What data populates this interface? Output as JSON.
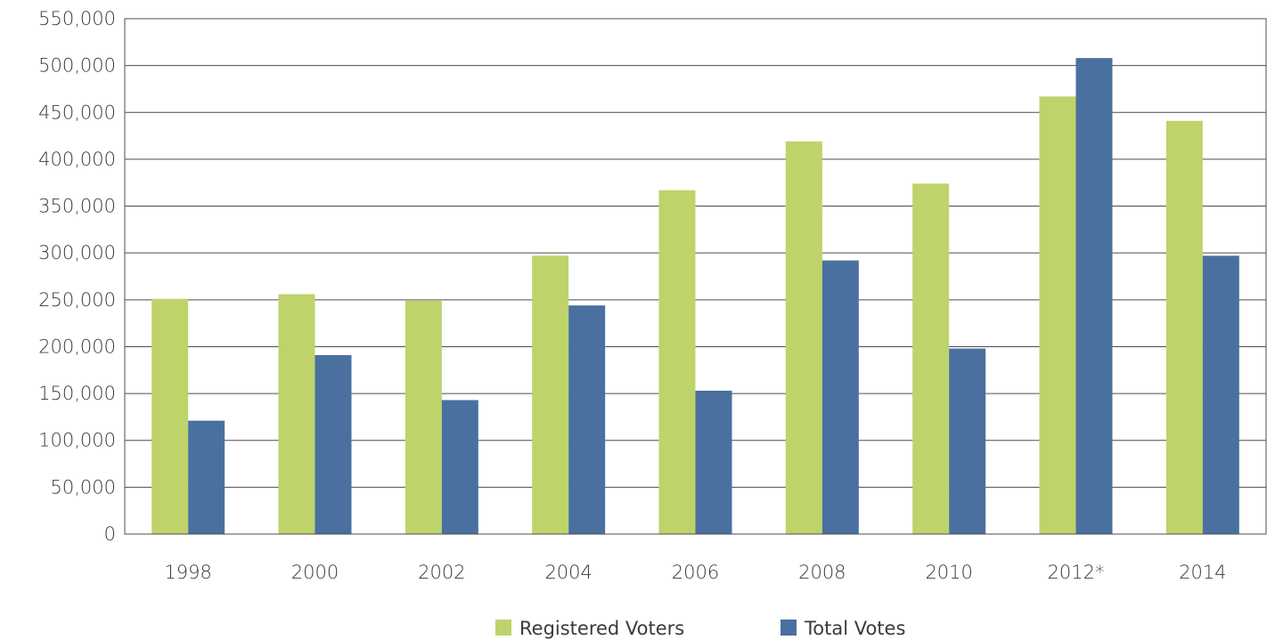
{
  "chart_data": {
    "type": "bar",
    "categories": [
      "1998",
      "2000",
      "2002",
      "2004",
      "2006",
      "2008",
      "2010",
      "2012*",
      "2014"
    ],
    "series": [
      {
        "name": "Registered Voters",
        "color": "#bed36a",
        "values": [
          251000,
          256000,
          249000,
          297000,
          367000,
          419000,
          374000,
          467000,
          441000
        ]
      },
      {
        "name": "Total Votes",
        "color": "#4a70a0",
        "values": [
          121000,
          191000,
          143000,
          244000,
          153000,
          292000,
          198000,
          508000,
          297000
        ]
      }
    ],
    "yticks": [
      "0",
      "50,000",
      "100,000",
      "150,000",
      "200,000",
      "250,000",
      "300,000",
      "350,000",
      "400,000",
      "450,000",
      "500,000",
      "550,000"
    ],
    "ylim": [
      0,
      550000
    ],
    "y_step": 50000,
    "grid": true,
    "legend_position": "bottom",
    "title": "",
    "xlabel": "",
    "ylabel": ""
  }
}
